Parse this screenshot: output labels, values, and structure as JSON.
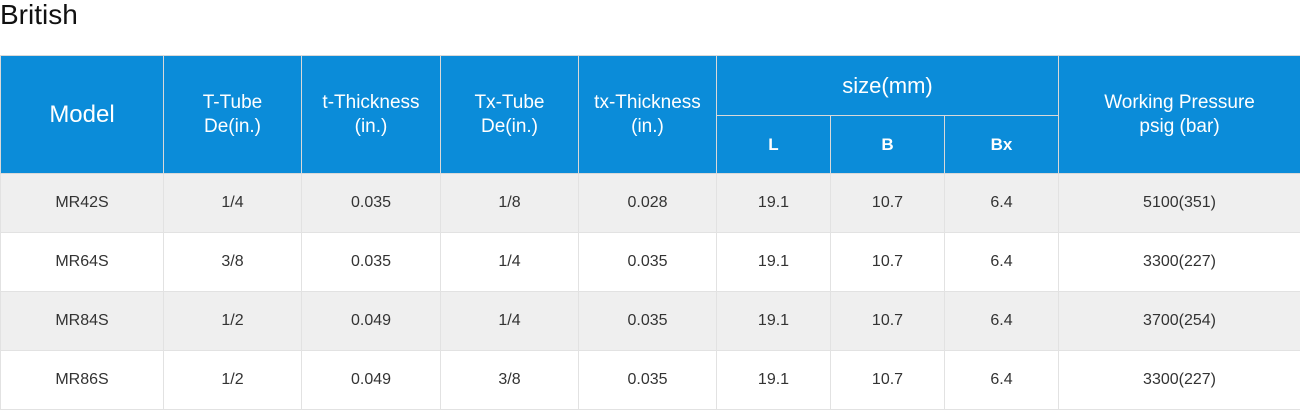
{
  "title": "British",
  "table": {
    "header": {
      "model": "Model",
      "t_tube": [
        "T-Tube",
        "De(in.)"
      ],
      "t_thickness": [
        "t-Thickness",
        "(in.)"
      ],
      "tx_tube": [
        "Tx-Tube",
        "De(in.)"
      ],
      "tx_thickness": [
        "tx-Thickness",
        "(in.)"
      ],
      "size": "size(mm)",
      "size_cols": [
        "L",
        "B",
        "Bx"
      ],
      "pressure": [
        "Working Pressure",
        "psig (bar)"
      ]
    },
    "rows": [
      [
        "MR42S",
        "1/4",
        "0.035",
        "1/8",
        "0.028",
        "19.1",
        "10.7",
        "6.4",
        "5100(351)"
      ],
      [
        "MR64S",
        "3/8",
        "0.035",
        "1/4",
        "0.035",
        "19.1",
        "10.7",
        "6.4",
        "3300(227)"
      ],
      [
        "MR84S",
        "1/2",
        "0.049",
        "1/4",
        "0.035",
        "19.1",
        "10.7",
        "6.4",
        "3700(254)"
      ],
      [
        "MR86S",
        "1/2",
        "0.049",
        "3/8",
        "0.035",
        "19.1",
        "10.7",
        "6.4",
        "3300(227)"
      ]
    ]
  }
}
